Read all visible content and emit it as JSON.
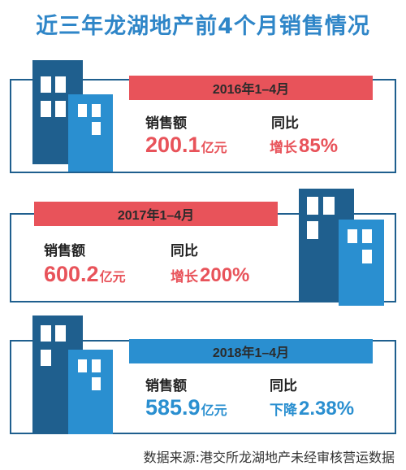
{
  "title": "近三年龙湖地产前4个月销售情况",
  "colors": {
    "title": "#2f86c8",
    "red": "#e8535a",
    "blue": "#2a8fd0",
    "dark_blue": "#1f5f8e",
    "frame": "#1f5f8e"
  },
  "chart_data": {
    "type": "table",
    "title": "近三年龙湖地产前4个月销售情况",
    "columns": [
      "销售额",
      "同比"
    ],
    "unit": "亿元",
    "rows": [
      {
        "period": "2016年1–4月",
        "sales": 200.1,
        "sales_num": "200.1",
        "sales_unit": "亿元",
        "change_word": "增长",
        "change_pct": "85%",
        "change_value": 85
      },
      {
        "period": "2017年1–4月",
        "sales": 600.2,
        "sales_num": "600.2",
        "sales_unit": "亿元",
        "change_word": "增长",
        "change_pct": "200%",
        "change_value": 200
      },
      {
        "period": "2018年1–4月",
        "sales": 585.9,
        "sales_num": "585.9",
        "sales_unit": "亿元",
        "change_word": "下降",
        "change_pct": "2.38%",
        "change_value": -2.38
      }
    ],
    "labels": {
      "sales": "销售额",
      "yoy": "同比"
    }
  },
  "source": "数据来源:港交所龙湖地产未经审核营运数据",
  "icon": "building-icon"
}
